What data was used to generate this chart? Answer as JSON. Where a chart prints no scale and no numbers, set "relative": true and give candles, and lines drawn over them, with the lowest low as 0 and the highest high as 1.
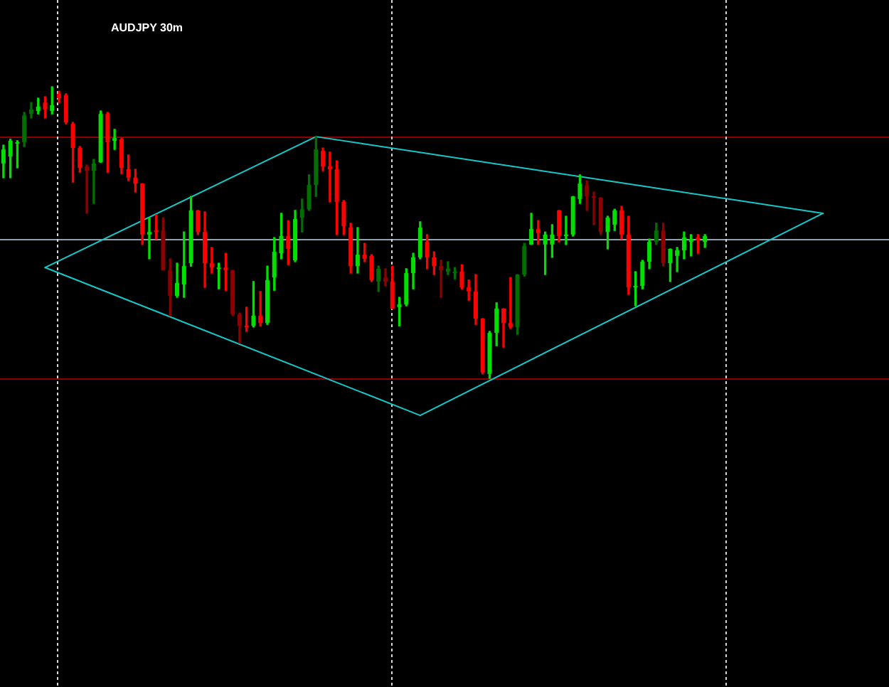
{
  "chart_data": {
    "type": "candlestick",
    "title": "AUDJPY 30m",
    "relative": true,
    "tick_labels": false,
    "categories": [
      null,
      null,
      null,
      null,
      null,
      null,
      null,
      null,
      null,
      null,
      null,
      null,
      null,
      null,
      null,
      null,
      null,
      null,
      null,
      null,
      null,
      null,
      null,
      null,
      null,
      null,
      null,
      null,
      null,
      null,
      null,
      null,
      null,
      null,
      null,
      null,
      null,
      null,
      null,
      null,
      null,
      null,
      null,
      null,
      null,
      null,
      null,
      null,
      null,
      null,
      null,
      null,
      null,
      null,
      null,
      null,
      null,
      null,
      null,
      null,
      null,
      null,
      null,
      null,
      null,
      null,
      null,
      null,
      null,
      null,
      null,
      null,
      null,
      null,
      null,
      null,
      null,
      null,
      null,
      null,
      null,
      null,
      null,
      null,
      null,
      null,
      null,
      null,
      null,
      null,
      null,
      null,
      null,
      null,
      null,
      null,
      null,
      null,
      null,
      null,
      null,
      null,
      null,
      null,
      null,
      null,
      null,
      null,
      null,
      null,
      null,
      null,
      null,
      null,
      null,
      null,
      null,
      null,
      null,
      null,
      null,
      null,
      null,
      null,
      null,
      null,
      null,
      null
    ],
    "ohlc": [
      [
        0.737,
        0.8,
        0.688,
        0.785
      ],
      [
        0.761,
        0.82,
        0.688,
        0.815
      ],
      [
        0.805,
        0.815,
        0.722,
        0.81
      ],
      [
        0.81,
        0.912,
        0.795,
        0.902
      ],
      [
        0.907,
        0.946,
        0.893,
        0.922
      ],
      [
        0.917,
        0.961,
        0.907,
        0.932
      ],
      [
        0.946,
        0.966,
        0.893,
        0.922
      ],
      [
        0.917,
        1,
        0.907,
        0.937
      ],
      [
        0.976,
        0.985,
        0.946,
        0.961
      ],
      [
        0.971,
        0.976,
        0.873,
        0.878
      ],
      [
        0.873,
        0.878,
        0.673,
        0.79
      ],
      [
        0.79,
        0.795,
        0.707,
        0.722
      ],
      [
        0.727,
        0.732,
        0.566,
        0.712
      ],
      [
        0.712,
        0.751,
        0.6,
        0.737
      ],
      [
        0.741,
        0.917,
        0.741,
        0.907
      ],
      [
        0.907,
        0.912,
        0.707,
        0.81
      ],
      [
        0.815,
        0.854,
        0.785,
        0.824
      ],
      [
        0.82,
        0.824,
        0.702,
        0.722
      ],
      [
        0.717,
        0.766,
        0.678,
        0.688
      ],
      [
        0.688,
        0.717,
        0.639,
        0.668
      ],
      [
        0.668,
        0.668,
        0.459,
        0.493
      ],
      [
        0.493,
        0.551,
        0.41,
        0.502
      ],
      [
        0.507,
        0.561,
        0.478,
        0.502
      ],
      [
        0.507,
        0.551,
        0.371,
        0.371
      ],
      [
        0.371,
        0.41,
        0.215,
        0.283
      ],
      [
        0.283,
        0.395,
        0.278,
        0.327
      ],
      [
        0.322,
        0.502,
        0.278,
        0.385
      ],
      [
        0.395,
        0.624,
        0.385,
        0.576
      ],
      [
        0.576,
        0.576,
        0.493,
        0.502
      ],
      [
        0.502,
        0.571,
        0.312,
        0.395
      ],
      [
        0.395,
        0.449,
        0.361,
        0.38
      ],
      [
        0.376,
        0.395,
        0.307,
        0.38
      ],
      [
        0.38,
        0.429,
        0.302,
        0.371
      ],
      [
        0.371,
        0.371,
        0.215,
        0.22
      ],
      [
        0.22,
        0.224,
        0.122,
        0.18
      ],
      [
        0.18,
        0.244,
        0.161,
        0.176
      ],
      [
        0.18,
        0.332,
        0.176,
        0.215
      ],
      [
        0.215,
        0.298,
        0.18,
        0.19
      ],
      [
        0.19,
        0.385,
        0.185,
        0.337
      ],
      [
        0.346,
        0.483,
        0.302,
        0.434
      ],
      [
        0.429,
        0.566,
        0.41,
        0.488
      ],
      [
        0.488,
        0.541,
        0.39,
        0.444
      ],
      [
        0.405,
        0.576,
        0.4,
        0.546
      ],
      [
        0.551,
        0.615,
        0.502,
        0.58
      ],
      [
        0.58,
        0.698,
        0.576,
        0.663
      ],
      [
        0.663,
        0.829,
        0.624,
        0.785
      ],
      [
        0.78,
        0.79,
        0.712,
        0.727
      ],
      [
        0.727,
        0.776,
        0.605,
        0.717
      ],
      [
        0.717,
        0.746,
        0.493,
        0.605
      ],
      [
        0.605,
        0.61,
        0.493,
        0.522
      ],
      [
        0.517,
        0.532,
        0.361,
        0.385
      ],
      [
        0.385,
        0.517,
        0.361,
        0.424
      ],
      [
        0.424,
        0.463,
        0.4,
        0.41
      ],
      [
        0.42,
        0.424,
        0.332,
        0.337
      ],
      [
        0.332,
        0.385,
        0.298,
        0.376
      ],
      [
        0.346,
        0.376,
        0.317,
        0.332
      ],
      [
        0.332,
        0.385,
        0.239,
        0.239
      ],
      [
        0.244,
        0.278,
        0.18,
        0.254
      ],
      [
        0.254,
        0.376,
        0.249,
        0.361
      ],
      [
        0.361,
        0.429,
        0.307,
        0.415
      ],
      [
        0.415,
        0.537,
        0.41,
        0.517
      ],
      [
        0.468,
        0.493,
        0.376,
        0.415
      ],
      [
        0.415,
        0.434,
        0.356,
        0.385
      ],
      [
        0.385,
        0.405,
        0.278,
        0.371
      ],
      [
        0.366,
        0.4,
        0.356,
        0.376
      ],
      [
        0.361,
        0.38,
        0.341,
        0.366
      ],
      [
        0.366,
        0.39,
        0.307,
        0.312
      ],
      [
        0.312,
        0.337,
        0.268,
        0.298
      ],
      [
        0.298,
        0.356,
        0.185,
        0.205
      ],
      [
        0.205,
        0.205,
        0.015,
        0.02
      ],
      [
        0.015,
        0.161,
        0,
        0.156
      ],
      [
        0.156,
        0.259,
        0.112,
        0.239
      ],
      [
        0.239,
        0.239,
        0.107,
        0.19
      ],
      [
        0.19,
        0.346,
        0.171,
        0.176
      ],
      [
        0.176,
        0.356,
        0.151,
        0.356
      ],
      [
        0.356,
        0.463,
        0.351,
        0.454
      ],
      [
        0.459,
        0.566,
        0.459,
        0.512
      ],
      [
        0.512,
        0.541,
        0.459,
        0.498
      ],
      [
        0.459,
        0.502,
        0.356,
        0.493
      ],
      [
        0.459,
        0.527,
        0.415,
        0.493
      ],
      [
        0.576,
        0.576,
        0.468,
        0.488
      ],
      [
        0.488,
        0.556,
        0.459,
        0.493
      ],
      [
        0.493,
        0.624,
        0.488,
        0.624
      ],
      [
        0.615,
        0.698,
        0.6,
        0.668
      ],
      [
        0.663,
        0.678,
        0.576,
        0.624
      ],
      [
        0.624,
        0.639,
        0.527,
        0.62
      ],
      [
        0.62,
        0.62,
        0.493,
        0.502
      ],
      [
        0.502,
        0.556,
        0.444,
        0.551
      ],
      [
        0.527,
        0.58,
        0.507,
        0.576
      ],
      [
        0.576,
        0.59,
        0.478,
        0.493
      ],
      [
        0.493,
        0.556,
        0.288,
        0.312
      ],
      [
        0.312,
        0.366,
        0.249,
        0.317
      ],
      [
        0.317,
        0.405,
        0.307,
        0.4
      ],
      [
        0.4,
        0.478,
        0.376,
        0.468
      ],
      [
        0.468,
        0.532,
        0.459,
        0.507
      ],
      [
        0.507,
        0.532,
        0.385,
        0.395
      ],
      [
        0.395,
        0.444,
        0.332,
        0.444
      ],
      [
        0.42,
        0.449,
        0.366,
        0.439
      ],
      [
        0.439,
        0.502,
        0.41,
        0.483
      ],
      [
        0.468,
        0.493,
        0.42,
        0.478
      ],
      [
        0.483,
        0.493,
        0.429,
        0.473
      ],
      [
        0.468,
        0.493,
        0.449,
        0.488
      ],
      null,
      null,
      null,
      null,
      null,
      null,
      null,
      null,
      null,
      null,
      null,
      null,
      null,
      null,
      null,
      null,
      null,
      null,
      null,
      null,
      null,
      null,
      null,
      null,
      null,
      null
    ],
    "colors": [
      "#00e000",
      "#00e000",
      "#00e000",
      "#006e00",
      "#006e00",
      "#00e000",
      "#ff0000",
      "#00e000",
      "#ff0000",
      "#ff0000",
      "#ff0000",
      "#ff0000",
      "#8b0000",
      "#006e00",
      "#00e000",
      "#ff0000",
      "#00e000",
      "#ff0000",
      "#ff0000",
      "#ff0000",
      "#ff0000",
      "#00e000",
      "#ff0000",
      "#8b0000",
      "#8b0000",
      "#00e000",
      "#00e000",
      "#00e000",
      "#ff0000",
      "#ff0000",
      "#ff0000",
      "#00e000",
      "#ff0000",
      "#8b0000",
      "#8b0000",
      "#ff0000",
      "#00e000",
      "#ff0000",
      "#00e000",
      "#00e000",
      "#00e000",
      "#ff0000",
      "#00e000",
      "#006e00",
      "#006e00",
      "#006e00",
      "#ff0000",
      "#ff0000",
      "#ff0000",
      "#ff0000",
      "#ff0000",
      "#00e000",
      "#ff0000",
      "#ff0000",
      "#006e00",
      "#8b0000",
      "#ff0000",
      "#00e000",
      "#00e000",
      "#00e000",
      "#00e000",
      "#ff0000",
      "#ff0000",
      "#8b0000",
      "#006e00",
      "#006e00",
      "#ff0000",
      "#ff0000",
      "#ff0000",
      "#ff0000",
      "#00e000",
      "#00e000",
      "#ff0000",
      "#ff0000",
      "#006e00",
      "#006e00",
      "#00e000",
      "#ff0000",
      "#00e000",
      "#00e000",
      "#ff0000",
      "#00e000",
      "#00e000",
      "#00e000",
      "#8b0000",
      "#8b0000",
      "#8b0000",
      "#00e000",
      "#00e000",
      "#ff0000",
      "#ff0000",
      "#00e000",
      "#00e000",
      "#00e000",
      "#006e00",
      "#8b0000",
      "#00e000",
      "#00e000",
      "#00e000",
      "#00e000",
      "#ff0000",
      "#00e000",
      null,
      null,
      null,
      null,
      null,
      null,
      null,
      null,
      null,
      null,
      null,
      null,
      null,
      null,
      null,
      null,
      null,
      null,
      null,
      null,
      null,
      null,
      null,
      null,
      null,
      null
    ],
    "series": [
      {
        "type": "line",
        "color": "#17c8c8",
        "values": [
          null,
          null,
          null,
          null,
          null,
          null,
          0.38,
          null,
          null,
          null,
          null,
          null,
          null,
          null,
          null,
          null,
          null,
          null,
          null,
          null,
          null,
          null,
          null,
          null,
          null,
          null,
          null,
          null,
          null,
          null,
          null,
          null,
          null,
          null,
          null,
          null,
          null,
          null,
          null,
          null,
          null,
          null,
          null,
          null,
          null,
          0.829,
          null,
          null,
          null,
          null,
          null,
          null,
          null,
          null,
          null,
          null,
          null,
          null,
          null,
          null,
          null,
          null,
          null,
          null,
          null,
          null,
          null,
          null,
          null,
          null,
          null,
          null,
          null,
          null,
          null,
          null,
          null,
          null,
          null,
          null,
          null,
          null,
          null,
          null,
          null,
          null,
          null,
          null,
          null,
          null,
          null,
          null,
          null,
          null,
          null,
          null,
          null,
          null,
          null,
          null,
          null,
          null,
          null,
          null,
          null,
          null,
          null,
          null,
          null,
          null,
          null,
          null,
          null,
          null,
          null,
          null,
          null,
          null,
          0.566,
          null,
          null,
          null,
          null,
          null,
          null,
          null,
          null,
          null
        ]
      },
      {
        "type": "line",
        "color": "#17c8c8",
        "values": [
          null,
          null,
          null,
          null,
          null,
          null,
          0.38,
          null,
          null,
          null,
          null,
          null,
          null,
          null,
          null,
          null,
          null,
          null,
          null,
          null,
          null,
          null,
          null,
          null,
          null,
          null,
          null,
          null,
          null,
          null,
          null,
          null,
          null,
          null,
          null,
          null,
          null,
          null,
          null,
          null,
          null,
          null,
          null,
          null,
          null,
          null,
          null,
          null,
          null,
          null,
          null,
          null,
          null,
          null,
          null,
          null,
          null,
          null,
          null,
          null,
          -0.127,
          null,
          null,
          null,
          null,
          null,
          null,
          null,
          null,
          null,
          null,
          null,
          null,
          null,
          null,
          null,
          null,
          null,
          null,
          null,
          null,
          null,
          null,
          null,
          null,
          null,
          null,
          null,
          null,
          null,
          null,
          null,
          null,
          null,
          null,
          null,
          null,
          null,
          null,
          null,
          null,
          null,
          null,
          null,
          null,
          null,
          null,
          null,
          null,
          null,
          null,
          null,
          null,
          null,
          null,
          null,
          null,
          null,
          0.566,
          null,
          null,
          null,
          null,
          null,
          null,
          null,
          null,
          null
        ]
      }
    ],
    "ref_lines": [
      {
        "axis": "y",
        "value": 0.829,
        "color": "#8b0000"
      },
      {
        "axis": "y",
        "value": 0.478,
        "color": "#8fa0b0"
      },
      {
        "axis": "y",
        "value": 0,
        "color": "#8b0000"
      }
    ]
  }
}
